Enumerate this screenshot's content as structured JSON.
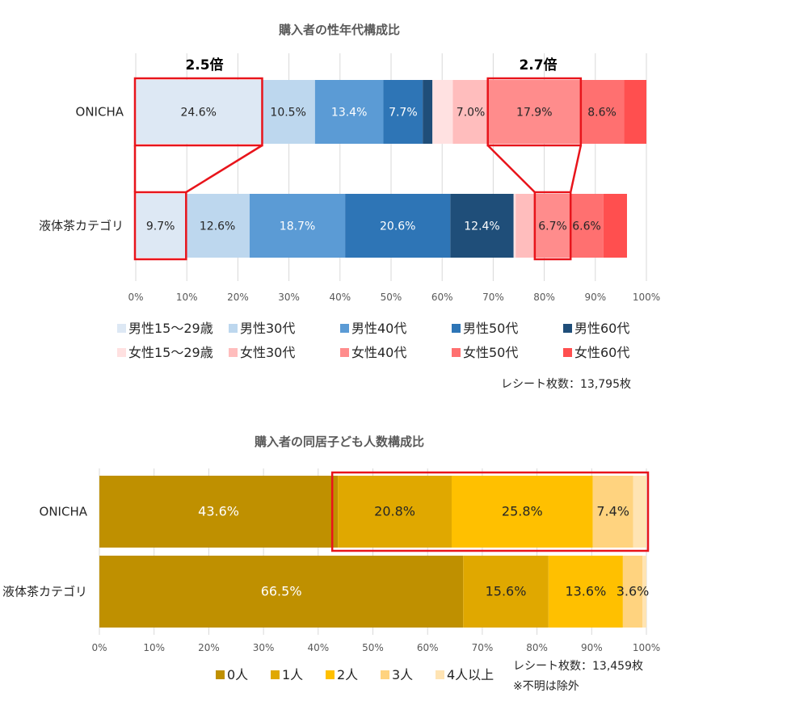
{
  "chart_data": [
    {
      "type": "bar",
      "orientation": "horizontal",
      "stacked": true,
      "title": "購入者の性年代構成比",
      "categories": [
        "ONICHA",
        "液体茶カテゴリ"
      ],
      "xlim": [
        0,
        100
      ],
      "ticks": [
        "0%",
        "10%",
        "20%",
        "30%",
        "40%",
        "50%",
        "60%",
        "70%",
        "80%",
        "90%",
        "100%"
      ],
      "grid": true,
      "legend_position": "bottom",
      "series": [
        {
          "name": "男性15～29歳",
          "color": "#dde8f4",
          "values": [
            24.6,
            9.7
          ],
          "labels": [
            "24.6%",
            "9.7%"
          ],
          "label_color": "#262626"
        },
        {
          "name": "男性30代",
          "color": "#bdd7ee",
          "values": [
            10.5,
            12.6
          ],
          "labels": [
            "10.5%",
            "12.6%"
          ],
          "label_color": "#262626"
        },
        {
          "name": "男性40代",
          "color": "#5b9bd5",
          "values": [
            13.4,
            18.7
          ],
          "labels": [
            "13.4%",
            "18.7%"
          ],
          "label_color": "#ffffff"
        },
        {
          "name": "男性50代",
          "color": "#2e75b6",
          "values": [
            7.7,
            20.6
          ],
          "labels": [
            "7.7%",
            "20.6%"
          ],
          "label_color": "#ffffff"
        },
        {
          "name": "男性60代",
          "color": "#1f4e79",
          "values": [
            1.9,
            12.4
          ],
          "labels": [
            "",
            "12.4%"
          ],
          "label_color": "#ffffff"
        },
        {
          "name": "女性15～29歳",
          "color": "#ffe1e1",
          "values": [
            4.0,
            0.4
          ],
          "labels": [
            "",
            ""
          ],
          "label_color": "#262626"
        },
        {
          "name": "女性30代",
          "color": "#ffbdbd",
          "values": [
            7.0,
            3.9
          ],
          "labels": [
            "7.0%",
            ""
          ],
          "label_color": "#262626"
        },
        {
          "name": "女性40代",
          "color": "#ff8c8c",
          "values": [
            17.9,
            6.7
          ],
          "labels": [
            "17.9%",
            "6.7%"
          ],
          "label_color": "#262626"
        },
        {
          "name": "女性50代",
          "color": "#ff7070",
          "values": [
            8.6,
            6.6
          ],
          "labels": [
            "8.6%",
            "6.6%"
          ],
          "label_color": "#262626"
        },
        {
          "name": "女性60代",
          "color": "#ff4f4f",
          "values": [
            4.4,
            4.6
          ],
          "labels": [
            "",
            ""
          ],
          "label_color": "#262626"
        }
      ],
      "annotations": {
        "ratio_left": "2.5倍",
        "ratio_right": "2.7倍",
        "highlight_color": "#e8141b"
      },
      "note": "レシート枚数：13,795枚"
    },
    {
      "type": "bar",
      "orientation": "horizontal",
      "stacked": true,
      "title": "購入者の同居子ども人数構成比",
      "categories": [
        "ONICHA",
        "液体茶カテゴリ"
      ],
      "xlim": [
        0,
        100
      ],
      "ticks": [
        "0%",
        "10%",
        "20%",
        "30%",
        "40%",
        "50%",
        "60%",
        "70%",
        "80%",
        "90%",
        "100%"
      ],
      "grid": true,
      "legend_position": "bottom",
      "series": [
        {
          "name": "0人",
          "color": "#bf9000",
          "values": [
            43.6,
            66.5
          ],
          "labels": [
            "43.6%",
            "66.5%"
          ],
          "label_color": "#ffffff"
        },
        {
          "name": "1人",
          "color": "#e0a800",
          "values": [
            20.8,
            15.6
          ],
          "labels": [
            "20.8%",
            "15.6%"
          ],
          "label_color": "#262626"
        },
        {
          "name": "2人",
          "color": "#ffc000",
          "values": [
            25.8,
            13.6
          ],
          "labels": [
            "25.8%",
            "13.6%"
          ],
          "label_color": "#262626"
        },
        {
          "name": "3人",
          "color": "#ffd37f",
          "values": [
            7.4,
            3.6
          ],
          "labels": [
            "7.4%",
            "3.6%"
          ],
          "label_color": "#262626"
        },
        {
          "name": "4人以上",
          "color": "#ffe4b3",
          "values": [
            2.4,
            0.7
          ],
          "labels": [
            "",
            ""
          ],
          "label_color": "#262626"
        }
      ],
      "annotations": {
        "highlight_color": "#e8141b"
      },
      "note": "レシート枚数：13,459枚",
      "note2": "※不明は除外"
    }
  ]
}
